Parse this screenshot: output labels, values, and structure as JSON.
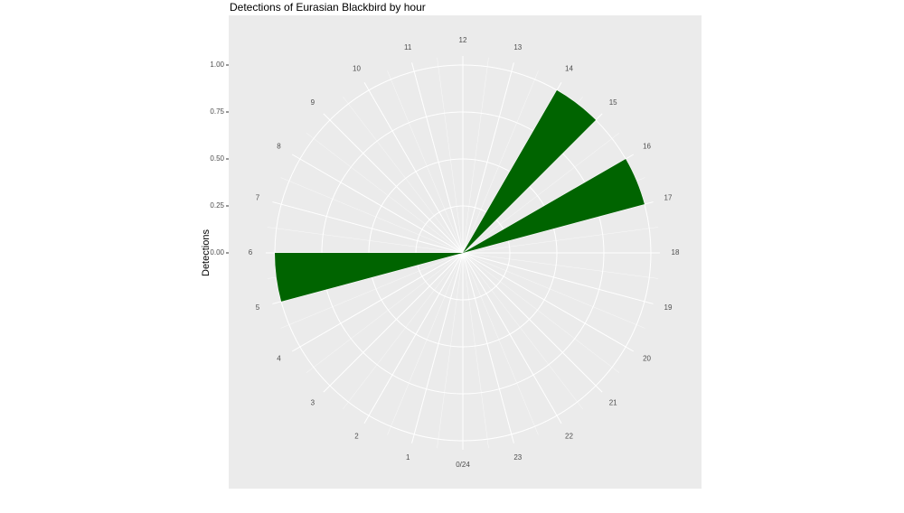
{
  "chart_data": {
    "type": "polar_histogram",
    "title": "Detections of Eurasian Blackbird by hour",
    "y_label": "Detections",
    "bins": [
      0,
      1,
      2,
      3,
      4,
      5,
      6,
      7,
      8,
      9,
      10,
      11,
      12,
      13,
      14,
      15,
      16,
      17,
      18,
      19,
      20,
      21,
      22,
      23,
      24
    ],
    "values": [
      0,
      0,
      0,
      0,
      0,
      1,
      0,
      0,
      0,
      0,
      0,
      0,
      0,
      0,
      1,
      0,
      1,
      0,
      0,
      0,
      0,
      0,
      0,
      0
    ],
    "color": "#006400",
    "xlim": [
      0,
      24
    ],
    "xticks": [
      {
        "value": 0,
        "label": "0/24"
      },
      1,
      2,
      3,
      4,
      5,
      6,
      7,
      8,
      9,
      10,
      11,
      12,
      13,
      14,
      15,
      16,
      17,
      18,
      19,
      20,
      21,
      22,
      23
    ],
    "ylim": [
      0,
      1
    ],
    "yticks": [
      {
        "value": 0,
        "label": "0.00"
      },
      {
        "value": 0.25,
        "label": "0.25"
      },
      {
        "value": 0.5,
        "label": "0.50"
      },
      {
        "value": 0.75,
        "label": "0.75"
      },
      {
        "value": 1,
        "label": "1.00"
      }
    ],
    "grid": true
  }
}
